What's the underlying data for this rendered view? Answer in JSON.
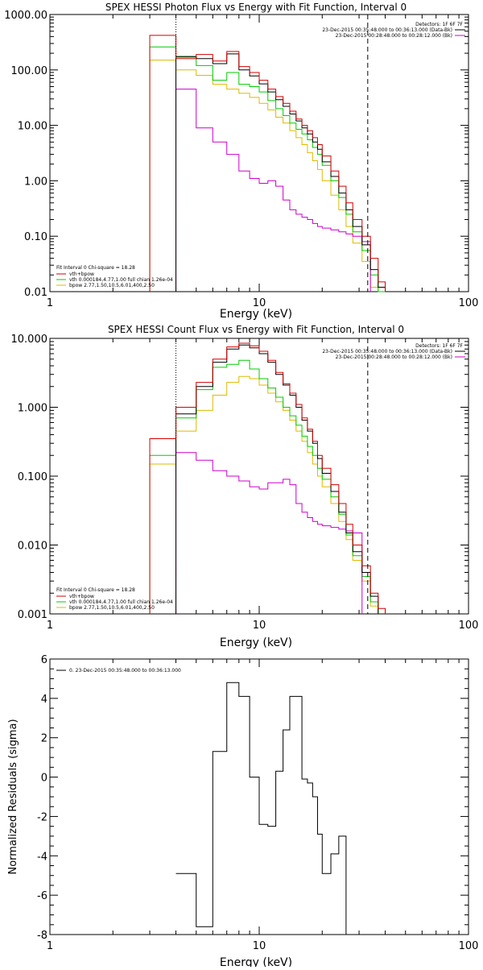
{
  "colors": {
    "data": "#000000",
    "total": "#d00000",
    "vth": "#00cc00",
    "bpow": "#ddbb00",
    "background": "#cc00cc",
    "marker_low": "#000000",
    "marker_high": "#000000"
  },
  "panels": {
    "top": {
      "title": "SPEX HESSI Photon Flux vs Energy with Fit Function, Interval 0",
      "xlabel": "Energy (keV)",
      "detectors": "Detectors: 1F 6F 7F",
      "time_data": "23-Dec-2015 00:35:48.000 to 00:36:13.000 (Data-Bk)",
      "time_bk": "23-Dec-2015 00:28:48.000 to 00:28:12.000 (Bk)",
      "fit_header": "Fit Interval 0    Chi-square = 18.28",
      "fit_lines": [
        "vth+bpow",
        "vth 0.000184,4.77,1.00  full chian 1.26e-04",
        "bpow 2.77,1.50,10.5,6.01,400,2.50"
      ]
    },
    "middle": {
      "title": "SPEX HESSI Count Flux vs Energy with Fit Function, Interval 0",
      "xlabel": "Energy (keV)",
      "detectors": "Detectors: 1F 6F 7F",
      "time_data": "23-Dec-2015 00:35:48.000 to 00:36:13.000 (Data-Bk)",
      "time_bk": "23-Dec-2015 00:28:48.000 to 00:28:12.000 (Bk)",
      "fit_header": "Fit Interval 0    Chi-square = 18.28",
      "fit_lines": [
        "vth+bpow",
        "vth 0.000184,4.77,1.00  full chian 1.26e-04",
        "bpow 2.77,1.50,10.5,6.01,400,2.50"
      ]
    },
    "bottom": {
      "xlabel": "Energy (keV)",
      "ylabel": "Normalized Residuals (sigma)",
      "legend": "0. 23-Dec-2015 00:35:48.000 to 00:36:13.000"
    }
  },
  "chart_data": [
    {
      "type": "line",
      "title": "SPEX HESSI Photon Flux vs Energy with Fit Function, Interval 0",
      "xlabel": "Energy (keV)",
      "x_scale": "log",
      "y_scale": "log",
      "xlim": [
        1,
        100
      ],
      "ylim": [
        0.01,
        1000
      ],
      "x_ticks": [
        {
          "v": 1,
          "label": "1"
        },
        {
          "v": 10,
          "label": "10"
        },
        {
          "v": 100,
          "label": "100"
        }
      ],
      "y_ticks": [
        {
          "v": 0.01,
          "label": "0.01"
        },
        {
          "v": 0.1,
          "label": "0.10"
        },
        {
          "v": 1,
          "label": "1.00"
        },
        {
          "v": 10,
          "label": "10.00"
        },
        {
          "v": 100,
          "label": "100.00"
        },
        {
          "v": 1000,
          "label": "1000.00"
        }
      ],
      "markers": [
        4,
        33
      ],
      "bin_edges": [
        3,
        4,
        5,
        6,
        7,
        8,
        9,
        10,
        11,
        12,
        13,
        14,
        15,
        16,
        17,
        18,
        19,
        20,
        22,
        24,
        26,
        28,
        31,
        34,
        37,
        40
      ],
      "series": [
        {
          "key": "total",
          "values": [
            420,
            160,
            190,
            145,
            215,
            115,
            90,
            65,
            45,
            33,
            25,
            18,
            13,
            10,
            8,
            6,
            4.5,
            2.8,
            1.5,
            0.8,
            0.4,
            0.2,
            0.1,
            0.04,
            0.015
          ]
        },
        {
          "key": "data",
          "values": [
            null,
            175,
            160,
            130,
            195,
            100,
            78,
            56,
            40,
            29,
            22,
            16,
            12,
            9,
            7,
            5,
            3.7,
            2.2,
            1.2,
            0.6,
            0.3,
            0.15,
            0.07,
            0.025,
            0.012
          ]
        },
        {
          "key": "vth",
          "values": [
            260,
            170,
            120,
            65,
            90,
            55,
            50,
            40,
            28,
            20,
            15,
            11,
            8.5,
            7,
            5.5,
            4,
            3,
            1.9,
            1.0,
            0.5,
            0.25,
            0.12,
            0.055,
            0.02,
            0.01
          ]
        },
        {
          "key": "bpow",
          "values": [
            150,
            100,
            80,
            55,
            45,
            38,
            32,
            25,
            19,
            14,
            11,
            8,
            6,
            4.5,
            3.2,
            2.3,
            1.6,
            1.0,
            0.55,
            0.3,
            0.15,
            0.075,
            0.035,
            0.012,
            null
          ]
        },
        {
          "key": "background",
          "values": [
            null,
            45,
            9,
            5,
            3,
            1.5,
            1.1,
            0.9,
            1.0,
            0.8,
            0.45,
            0.3,
            0.25,
            0.22,
            0.2,
            0.17,
            0.15,
            0.14,
            0.13,
            0.12,
            0.11,
            0.1,
            0.08,
            null,
            null
          ]
        }
      ]
    },
    {
      "type": "line",
      "title": "SPEX HESSI Count Flux vs Energy with Fit Function, Interval 0",
      "xlabel": "Energy (keV)",
      "x_scale": "log",
      "y_scale": "log",
      "xlim": [
        1,
        100
      ],
      "ylim": [
        0.001,
        10
      ],
      "x_ticks": [
        {
          "v": 1,
          "label": "1"
        },
        {
          "v": 10,
          "label": "10"
        },
        {
          "v": 100,
          "label": "100"
        }
      ],
      "y_ticks": [
        {
          "v": 0.001,
          "label": "0.001"
        },
        {
          "v": 0.01,
          "label": "0.010"
        },
        {
          "v": 0.1,
          "label": "0.100"
        },
        {
          "v": 1,
          "label": "1.000"
        },
        {
          "v": 10,
          "label": "10.000"
        }
      ],
      "markers": [
        4,
        33
      ],
      "bin_edges": [
        3,
        4,
        5,
        6,
        7,
        8,
        9,
        10,
        11,
        12,
        13,
        14,
        15,
        16,
        17,
        18,
        19,
        20,
        22,
        24,
        26,
        28,
        31,
        34,
        37,
        40
      ],
      "series": [
        {
          "key": "total",
          "values": [
            0.35,
            1.0,
            2.3,
            5.0,
            7.5,
            8.5,
            7.8,
            6.5,
            4.8,
            3.2,
            2.2,
            1.6,
            1.1,
            0.7,
            0.48,
            0.32,
            0.2,
            0.13,
            0.075,
            0.04,
            0.02,
            0.01,
            0.005,
            0.002,
            0.0012
          ]
        },
        {
          "key": "data",
          "values": [
            null,
            0.8,
            2.0,
            4.5,
            7.0,
            8.0,
            7.3,
            6.0,
            4.5,
            3.0,
            2.1,
            1.5,
            1.0,
            0.65,
            0.45,
            0.3,
            0.18,
            0.11,
            0.06,
            0.03,
            0.015,
            0.008,
            0.004,
            0.0018,
            null
          ]
        },
        {
          "key": "vth",
          "values": [
            0.2,
            0.7,
            1.8,
            3.8,
            4.2,
            4.8,
            3.6,
            2.6,
            1.9,
            1.4,
            1.0,
            0.75,
            0.55,
            0.38,
            0.27,
            0.2,
            0.13,
            0.09,
            0.05,
            0.028,
            0.014,
            0.007,
            0.0035,
            0.0015,
            null
          ]
        },
        {
          "key": "bpow",
          "values": [
            0.15,
            0.45,
            0.9,
            1.5,
            2.3,
            2.8,
            2.6,
            2.1,
            1.6,
            1.2,
            0.9,
            0.65,
            0.45,
            0.32,
            0.22,
            0.15,
            0.1,
            0.07,
            0.04,
            0.022,
            0.012,
            0.006,
            0.003,
            0.0013,
            null
          ]
        },
        {
          "key": "background",
          "values": [
            null,
            0.22,
            0.17,
            0.12,
            0.1,
            0.085,
            0.07,
            0.065,
            0.08,
            0.08,
            0.09,
            0.075,
            0.04,
            0.03,
            0.025,
            0.022,
            0.02,
            0.019,
            0.018,
            0.017,
            0.016,
            0.015,
            null,
            null,
            null
          ]
        }
      ]
    },
    {
      "type": "line",
      "xlabel": "Energy (keV)",
      "ylabel": "Normalized Residuals (sigma)",
      "x_scale": "log",
      "y_scale": "linear",
      "xlim": [
        1,
        100
      ],
      "ylim": [
        -8,
        6
      ],
      "x_ticks": [
        {
          "v": 1,
          "label": "1"
        },
        {
          "v": 10,
          "label": "10"
        },
        {
          "v": 100,
          "label": "100"
        }
      ],
      "y_ticks": [
        {
          "v": -8,
          "label": "-8"
        },
        {
          "v": -6,
          "label": "-6"
        },
        {
          "v": -4,
          "label": "-4"
        },
        {
          "v": -2,
          "label": "-2"
        },
        {
          "v": 0,
          "label": "0"
        },
        {
          "v": 2,
          "label": "2"
        },
        {
          "v": 4,
          "label": "4"
        },
        {
          "v": 6,
          "label": "6"
        }
      ],
      "bin_edges": [
        4,
        5,
        6,
        7,
        8,
        9,
        10,
        11,
        12,
        13,
        14,
        15,
        16,
        17,
        18,
        19,
        20,
        22,
        24,
        26,
        28,
        31,
        34
      ],
      "series": [
        {
          "key": "data",
          "values": [
            -4.9,
            -7.6,
            1.3,
            4.8,
            4.1,
            0.0,
            -2.4,
            -2.5,
            0.3,
            2.4,
            4.1,
            4.1,
            -0.1,
            -0.3,
            -1.0,
            -2.9,
            -4.9,
            -3.9,
            -3.0,
            -8.0,
            -8.0,
            -8.0
          ]
        }
      ]
    }
  ]
}
